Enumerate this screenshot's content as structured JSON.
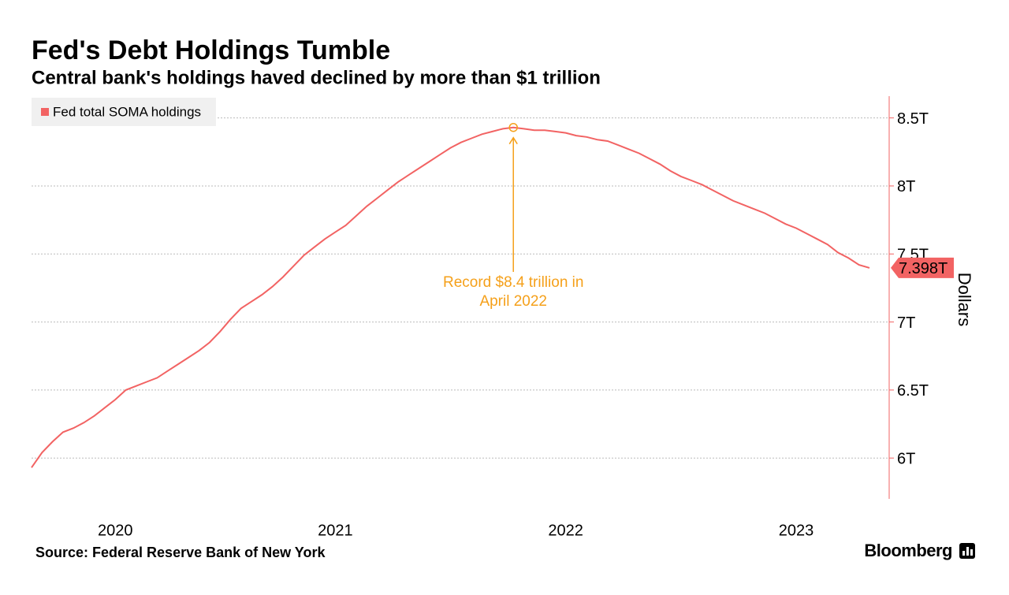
{
  "chart_data": {
    "type": "line",
    "title": "Fed's Debt Holdings Tumble",
    "subtitle": "Central bank's holdings haved declined by more than $1 trillion",
    "source": "Source: Federal Reserve Bank of New York",
    "brand": "Bloomberg",
    "y_axis_label": "Dollars",
    "annotation": [
      "Record $8.4 trillion in",
      "April 2022"
    ],
    "annotation_color": "#f5a01a",
    "categories": [
      null,
      null,
      null,
      null,
      null,
      null,
      null,
      null,
      "2020",
      null,
      null,
      null,
      null,
      null,
      null,
      null,
      null,
      null,
      null,
      null,
      null,
      null,
      null,
      null,
      null,
      null,
      null,
      null,
      null,
      "2021",
      null,
      null,
      null,
      null,
      null,
      null,
      null,
      null,
      null,
      null,
      null,
      null,
      null,
      null,
      null,
      null,
      null,
      null,
      null,
      null,
      null,
      "2022",
      null,
      null,
      null,
      null,
      null,
      null,
      null,
      null,
      null,
      null,
      null,
      null,
      null,
      null,
      null,
      null,
      null,
      null,
      null,
      null,
      null,
      "2023",
      null,
      null,
      null,
      null,
      null,
      null,
      null
    ],
    "series": [
      {
        "name": "Fed total SOMA holdings",
        "color": "#f26363",
        "values": [
          5.93,
          6.04,
          6.12,
          6.19,
          6.22,
          6.26,
          6.31,
          6.37,
          6.43,
          6.5,
          6.53,
          6.56,
          6.59,
          6.64,
          6.69,
          6.74,
          6.79,
          6.85,
          6.93,
          7.02,
          7.1,
          7.15,
          7.2,
          7.26,
          7.33,
          7.41,
          7.49,
          7.55,
          7.61,
          7.66,
          7.71,
          7.78,
          7.85,
          7.91,
          7.97,
          8.03,
          8.08,
          8.13,
          8.18,
          8.23,
          8.28,
          8.32,
          8.35,
          8.38,
          8.4,
          8.42,
          8.43,
          8.42,
          8.41,
          8.41,
          8.4,
          8.39,
          8.37,
          8.36,
          8.34,
          8.33,
          8.3,
          8.27,
          8.24,
          8.2,
          8.16,
          8.11,
          8.07,
          8.04,
          8.01,
          7.97,
          7.93,
          7.89,
          7.86,
          7.83,
          7.8,
          7.76,
          7.72,
          7.69,
          7.65,
          7.61,
          7.57,
          7.51,
          7.47,
          7.42,
          7.398
        ],
        "value_labels": [
          null,
          null,
          null,
          null,
          null,
          null,
          null,
          null,
          null,
          null,
          null,
          null,
          null,
          null,
          null,
          null,
          null,
          null,
          null,
          null,
          null,
          null,
          null,
          null,
          null,
          null,
          null,
          null,
          null,
          null,
          null,
          null,
          null,
          null,
          null,
          null,
          null,
          null,
          null,
          null,
          null,
          null,
          null,
          null,
          null,
          null,
          null,
          null,
          null,
          null,
          null,
          null,
          null,
          null,
          null,
          null,
          null,
          null,
          null,
          null,
          null,
          null,
          null,
          null,
          null,
          null,
          null,
          null,
          null,
          null,
          null,
          null,
          null,
          null,
          null,
          null,
          null,
          null,
          null,
          null,
          "7.398T"
        ]
      }
    ],
    "ylim": [
      5.7,
      8.66
    ],
    "yticks": [
      {
        "value": 6,
        "label": "6T"
      },
      {
        "value": 6.5,
        "label": "6.5T"
      },
      {
        "value": 7,
        "label": "7T"
      },
      {
        "value": 7.5,
        "label": "7.5T"
      },
      {
        "value": 8,
        "label": "8T"
      },
      {
        "value": 8.5,
        "label": "8.5T"
      }
    ],
    "grid": true,
    "legend": "top-left"
  }
}
